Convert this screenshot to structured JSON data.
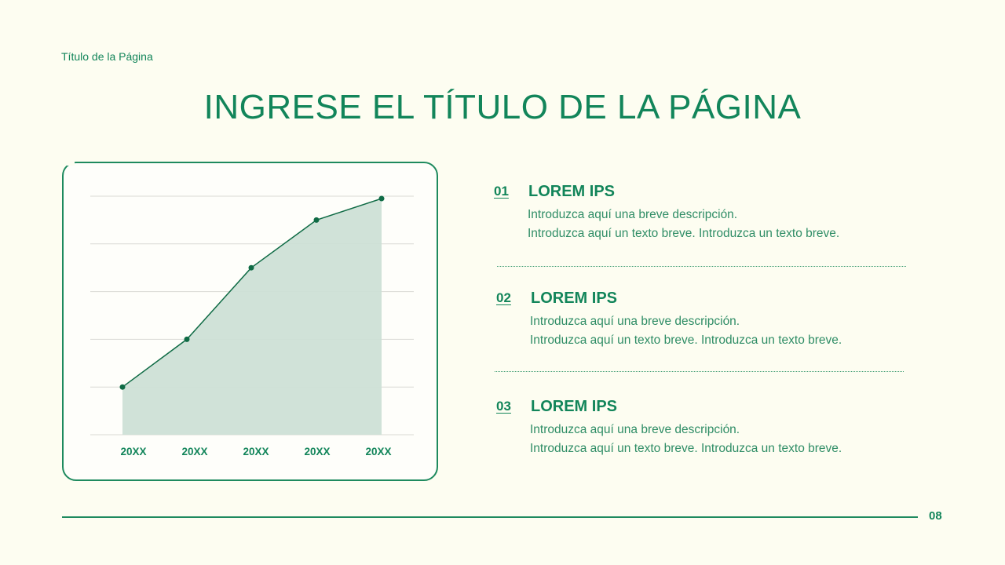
{
  "header": {
    "page_label": "Título de la Página",
    "title": "INGRESE EL TÍTULO DE LA PÁGINA"
  },
  "chart_data": {
    "type": "area",
    "title": "",
    "xlabel": "",
    "ylabel": "",
    "categories": [
      "20XX",
      "20XX",
      "20XX",
      "20XX",
      "20XX"
    ],
    "values": [
      1.0,
      2.0,
      3.5,
      4.5,
      4.95
    ],
    "ylim": [
      0,
      5
    ],
    "grid": true,
    "legend": "none",
    "colors": {
      "line": "#0f6b45",
      "fill": "#cde0d6",
      "grid": "#d9d9d4"
    }
  },
  "items": [
    {
      "number": "01",
      "heading": "LOREM IPS",
      "line1": "Introduzca aquí una breve descripción.",
      "line2": "Introduzca aquí un texto breve. Introduzca un texto breve."
    },
    {
      "number": "02",
      "heading": "LOREM IPS",
      "line1": "Introduzca aquí una breve descripción.",
      "line2": "Introduzca aquí un texto breve. Introduzca un texto breve."
    },
    {
      "number": "03",
      "heading": "LOREM IPS",
      "line1": "Introduzca aquí una breve descripción.",
      "line2": "Introduzca aquí un texto breve. Introduzca un texto breve."
    }
  ],
  "footer": {
    "page_number": "08"
  },
  "colors": {
    "background": "#fdfdf1",
    "accent": "#12855a"
  }
}
